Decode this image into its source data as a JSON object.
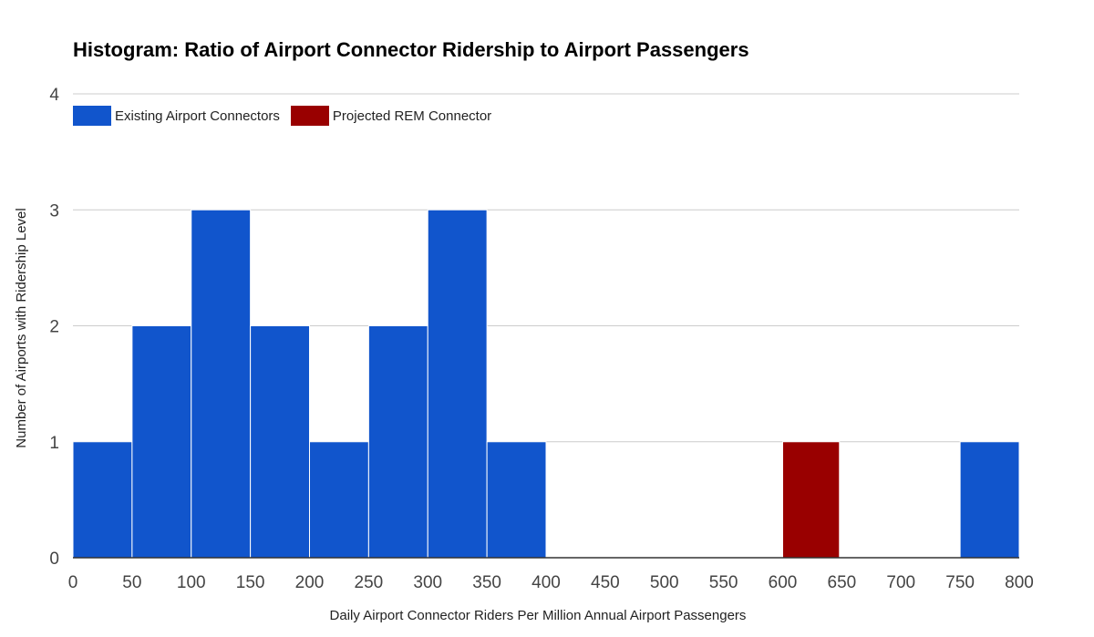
{
  "chart_data": {
    "type": "bar",
    "title": "Histogram: Ratio of Airport Connector Ridership to Airport Passengers",
    "xlabel": "Daily Airport Connector Riders Per Million Annual Airport Passengers",
    "ylabel": "Number of Airports with Ridership Level",
    "xlim": [
      0,
      800
    ],
    "ylim": [
      0,
      4
    ],
    "x_ticks": [
      "0",
      "50",
      "100",
      "150",
      "200",
      "250",
      "300",
      "350",
      "400",
      "450",
      "500",
      "550",
      "600",
      "650",
      "700",
      "750",
      "800"
    ],
    "y_ticks": [
      "0",
      "1",
      "2",
      "3",
      "4"
    ],
    "grid": true,
    "legend_position": "top-left",
    "series": [
      {
        "name": "Existing Airport Connectors",
        "color": "#1155cc",
        "bins": [
          {
            "x0": 0,
            "x1": 50,
            "count": 1
          },
          {
            "x0": 50,
            "x1": 100,
            "count": 2
          },
          {
            "x0": 100,
            "x1": 150,
            "count": 3
          },
          {
            "x0": 150,
            "x1": 200,
            "count": 2
          },
          {
            "x0": 200,
            "x1": 250,
            "count": 1
          },
          {
            "x0": 250,
            "x1": 300,
            "count": 2
          },
          {
            "x0": 300,
            "x1": 350,
            "count": 3
          },
          {
            "x0": 350,
            "x1": 400,
            "count": 1
          },
          {
            "x0": 750,
            "x1": 800,
            "count": 1
          }
        ]
      },
      {
        "name": "Projected REM Connector",
        "color": "#990000",
        "bins": [
          {
            "x0": 600,
            "x1": 648,
            "count": 1
          }
        ]
      }
    ]
  }
}
